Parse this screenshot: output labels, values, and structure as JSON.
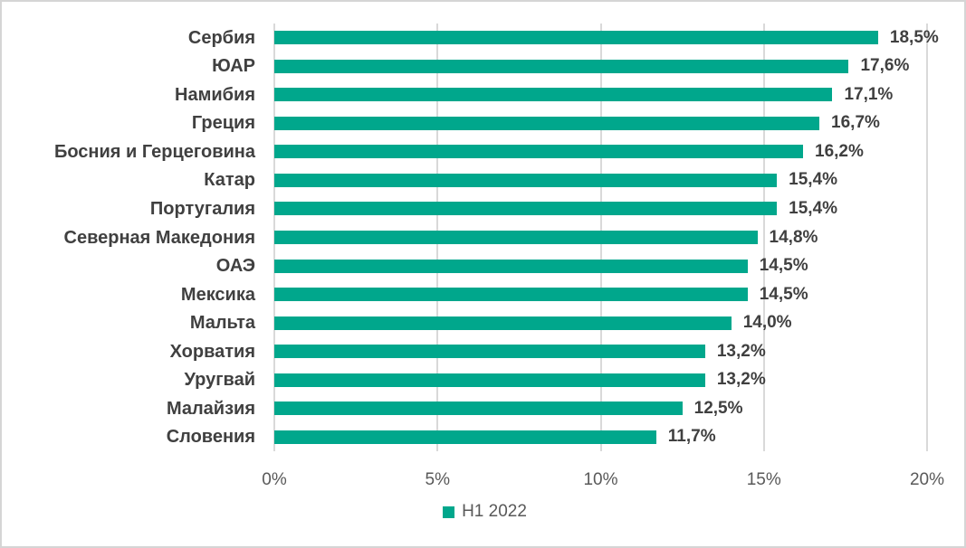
{
  "chart_data": {
    "type": "bar",
    "orientation": "horizontal",
    "title": "",
    "xlabel": "",
    "ylabel": "",
    "categories": [
      "Сербия",
      "ЮАР",
      "Намибия",
      "Греция",
      "Босния и Герцеговина",
      "Катар",
      "Португалия",
      "Северная Македония",
      "ОАЭ",
      "Мексика",
      "Мальта",
      "Хорватия",
      "Уругвай",
      "Малайзия",
      "Словения"
    ],
    "series": [
      {
        "name": "H1 2022",
        "values": [
          18.5,
          17.6,
          17.1,
          16.7,
          16.2,
          15.4,
          15.4,
          14.8,
          14.5,
          14.5,
          14.0,
          13.2,
          13.2,
          12.5,
          11.7
        ]
      }
    ],
    "value_labels": [
      "18,5%",
      "17,6%",
      "17,1%",
      "16,7%",
      "16,2%",
      "15,4%",
      "15,4%",
      "14,8%",
      "14,5%",
      "14,5%",
      "14,0%",
      "13,2%",
      "13,2%",
      "12,5%",
      "11,7%"
    ],
    "x_ticks": [
      {
        "value": 0,
        "label": "0%"
      },
      {
        "value": 5,
        "label": "5%"
      },
      {
        "value": 10,
        "label": "10%"
      },
      {
        "value": 15,
        "label": "15%"
      },
      {
        "value": 20,
        "label": "20%"
      }
    ],
    "xlim": [
      0,
      20
    ],
    "grid": "vertical-major",
    "legend_position": "bottom-center",
    "colors": {
      "bar": "#00a78c",
      "category_text": "#404040",
      "value_text": "#404040",
      "axis_text": "#595959",
      "gridline": "#d9d9d9",
      "border": "#d5d5d5",
      "background": "#ffffff"
    }
  }
}
